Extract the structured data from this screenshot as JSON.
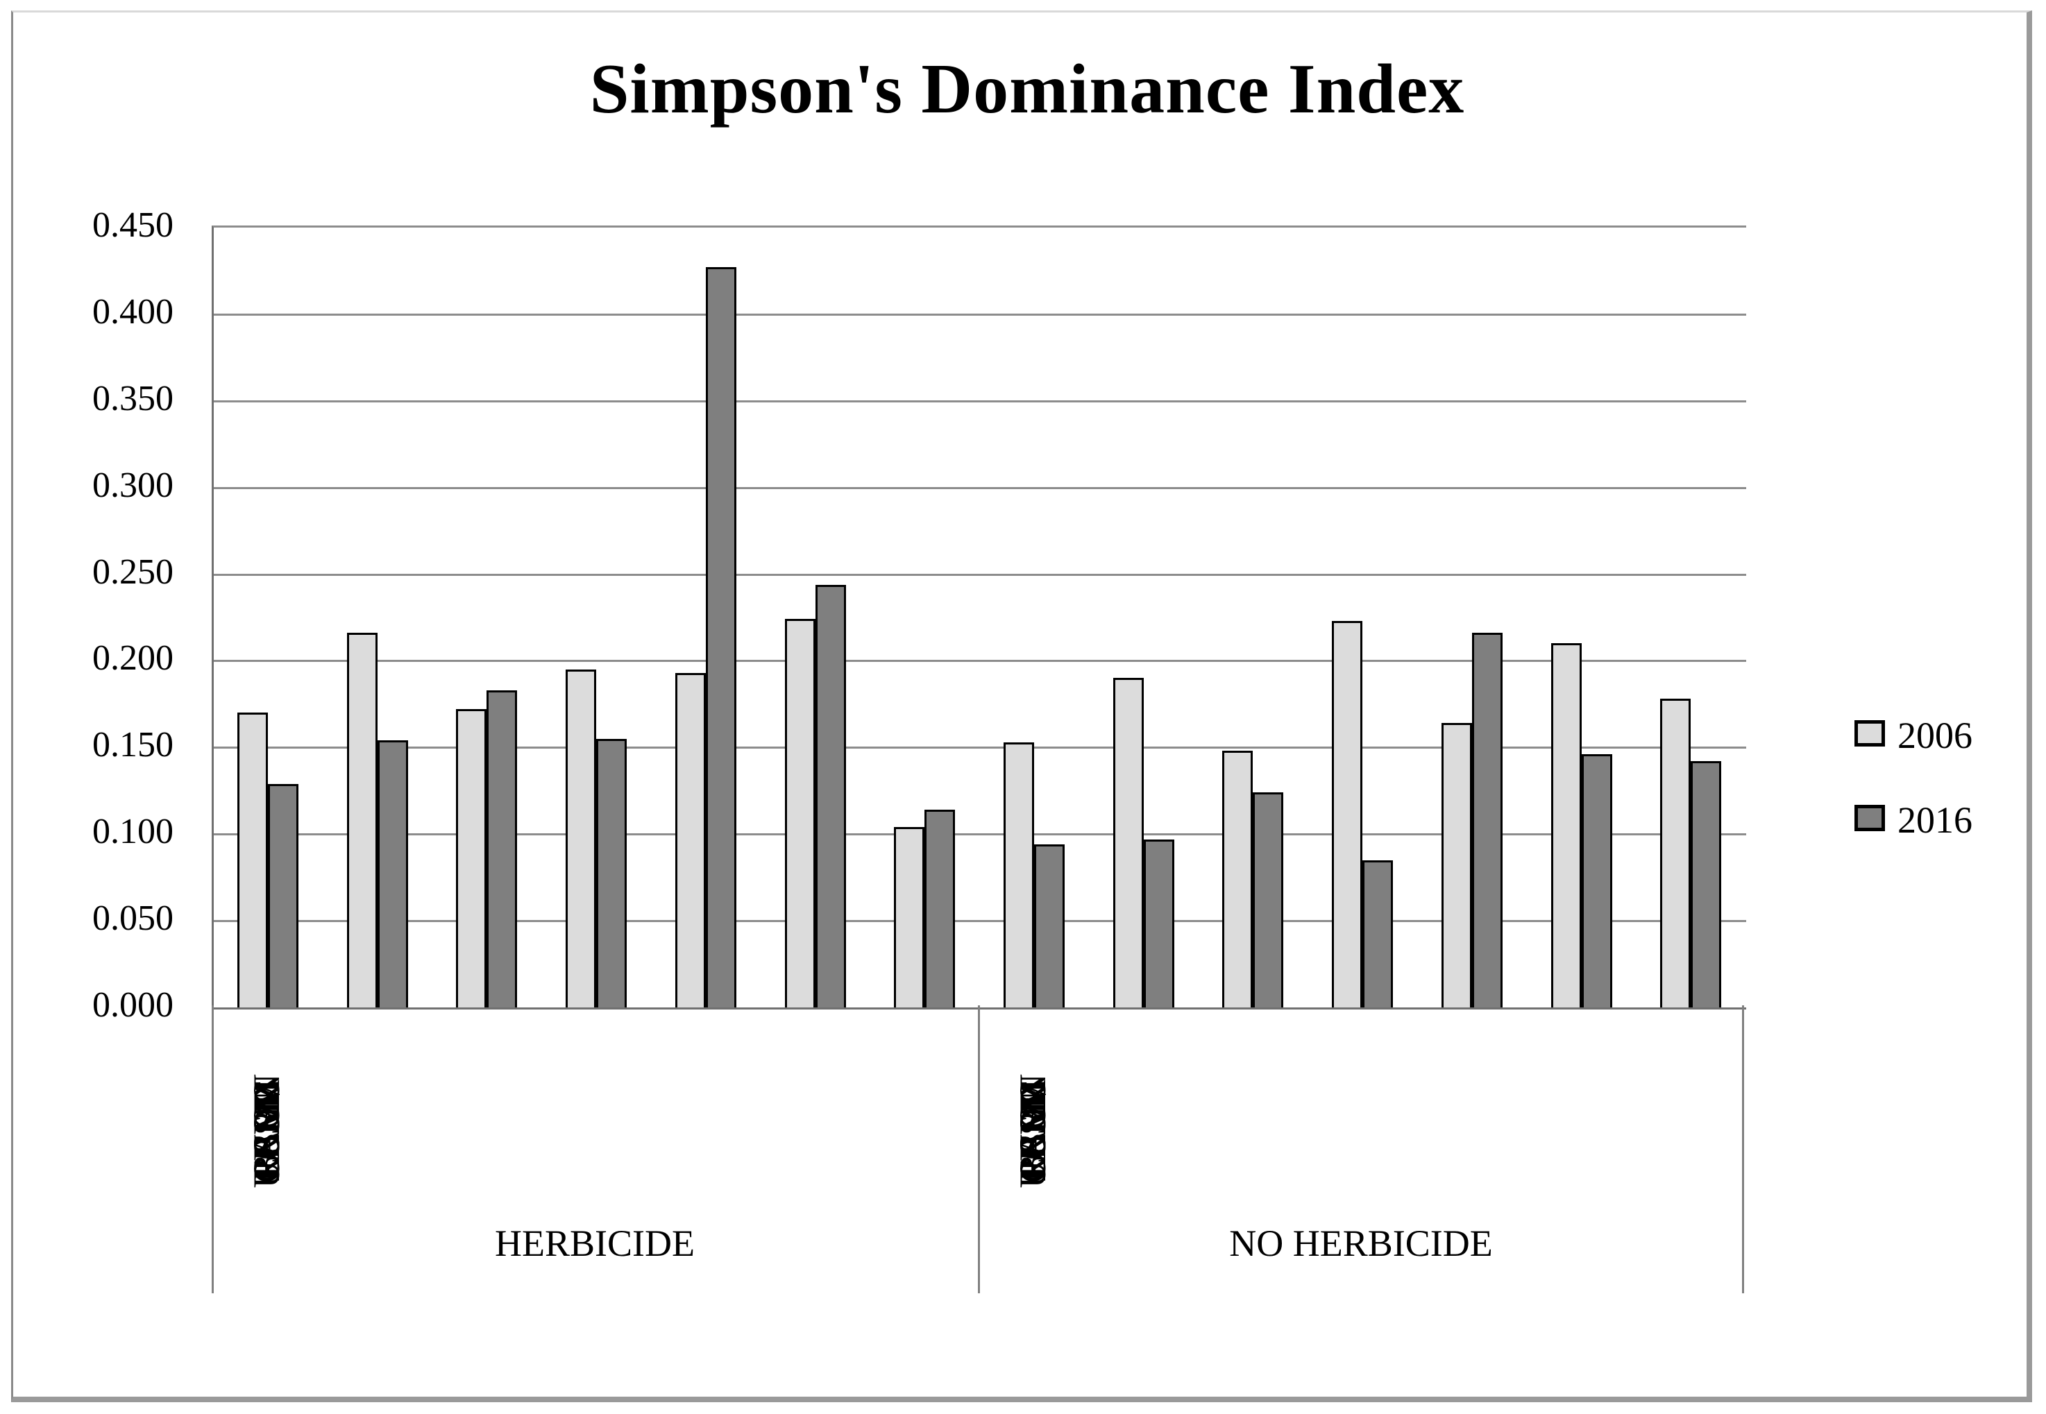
{
  "figure": {
    "title": "Simpson's Dominance Index"
  },
  "legend": {
    "position": "right",
    "items": [
      {
        "label": "2006",
        "color": "#dcdcdc"
      },
      {
        "label": "2016",
        "color": "#7f7f7f"
      }
    ]
  },
  "axis": {
    "y_tick_labels": [
      "0.450",
      "0.400",
      "0.350",
      "0.300",
      "0.250",
      "0.200",
      "0.150",
      "0.100",
      "0.050",
      "0.000"
    ]
  },
  "colors": {
    "bar_2006": "#dcdcdc",
    "bar_2016": "#7f7f7f",
    "bar_border": "#000000",
    "gridline": "#8c8c8c",
    "axis_line": "#707070"
  },
  "chart_data": {
    "type": "bar",
    "title": "Simpson's Dominance Index",
    "xlabel": "",
    "ylabel": "",
    "ylim": [
      0,
      0.45
    ],
    "y_tick_interval": 0.05,
    "y_tick_labels": [
      "0.450",
      "0.400",
      "0.350",
      "0.300",
      "0.250",
      "0.200",
      "0.150",
      "0.100",
      "0.050",
      "0.000"
    ],
    "grid": true,
    "legend_position": "right",
    "series_names": [
      "2006",
      "2016"
    ],
    "groups": [
      {
        "label": "HERBICIDE",
        "categories": [
          "LSRR",
          "UUMN",
          "CBSM",
          "FCSM",
          "PRDV",
          "BSHL",
          "RACC"
        ],
        "series": [
          {
            "name": "2006",
            "values": [
              0.17,
              0.216,
              0.172,
              0.195,
              0.193,
              0.224,
              0.104
            ]
          },
          {
            "name": "2016",
            "values": [
              0.129,
              0.154,
              0.183,
              0.155,
              0.427,
              0.244,
              0.114
            ]
          }
        ]
      },
      {
        "label": "NO HERBICIDE",
        "categories": [
          "LSRR",
          "UUMN",
          "CBSM",
          "FCSM",
          "PRDV",
          "BSHL",
          "RACC"
        ],
        "series": [
          {
            "name": "2006",
            "values": [
              0.153,
              0.19,
              0.148,
              0.223,
              0.164,
              0.21,
              0.178
            ]
          },
          {
            "name": "2016",
            "values": [
              0.094,
              0.097,
              0.124,
              0.085,
              0.216,
              0.146,
              0.142
            ]
          }
        ]
      }
    ]
  }
}
